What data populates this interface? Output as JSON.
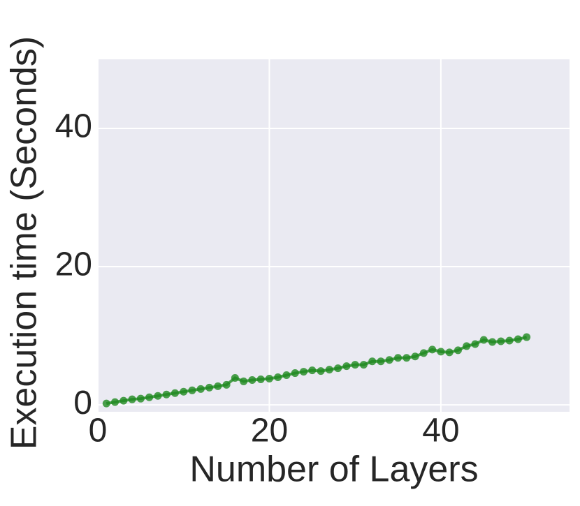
{
  "chart_data": {
    "type": "line",
    "xlabel": "Number of Layers",
    "ylabel": "Execution time (Seconds)",
    "x": [
      1,
      2,
      3,
      4,
      5,
      6,
      7,
      8,
      9,
      10,
      11,
      12,
      13,
      14,
      15,
      16,
      17,
      18,
      19,
      20,
      21,
      22,
      23,
      24,
      25,
      26,
      27,
      28,
      29,
      30,
      31,
      32,
      33,
      34,
      35,
      36,
      37,
      38,
      39,
      40,
      41,
      42,
      43,
      44,
      45,
      46,
      47,
      48,
      49,
      50
    ],
    "series": [
      {
        "color": "#1f8a1f",
        "values": [
          0.2,
          0.4,
          0.6,
          0.8,
          0.9,
          1.1,
          1.3,
          1.5,
          1.7,
          1.9,
          2.1,
          2.3,
          2.5,
          2.7,
          2.9,
          3.9,
          3.4,
          3.6,
          3.7,
          3.8,
          4.0,
          4.3,
          4.6,
          4.8,
          5.0,
          4.9,
          5.1,
          5.3,
          5.6,
          5.8,
          5.8,
          6.3,
          6.3,
          6.5,
          6.8,
          6.8,
          7.0,
          7.5,
          8.0,
          7.7,
          7.6,
          7.9,
          8.5,
          8.8,
          9.4,
          9.1,
          9.2,
          9.3,
          9.5,
          9.8
        ]
      }
    ],
    "xlim": [
      0,
      55
    ],
    "ylim": [
      -1,
      50
    ],
    "xticks": [
      0,
      20,
      40
    ],
    "yticks": [
      0,
      20,
      40
    ],
    "grid": true
  }
}
